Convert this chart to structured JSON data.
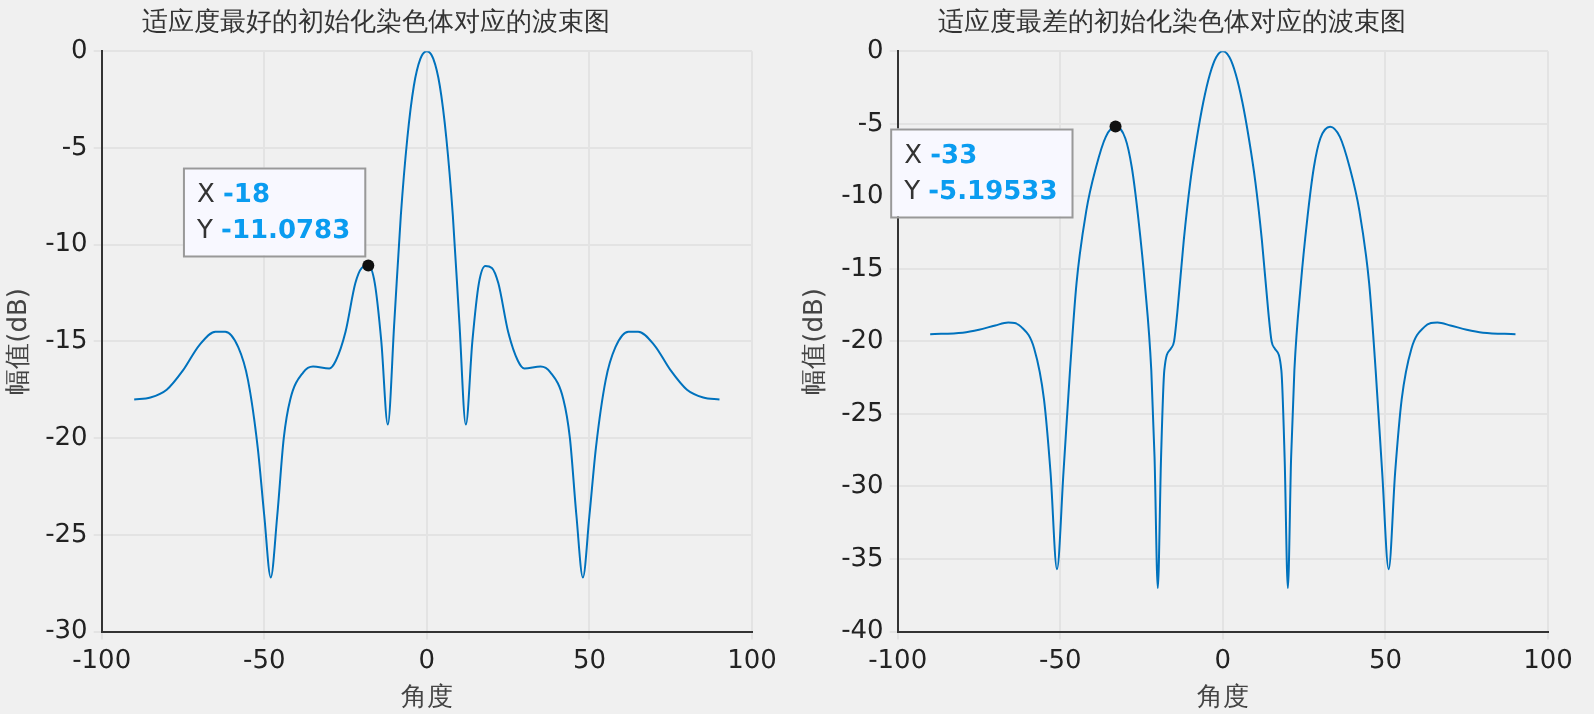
{
  "chart_data": [
    {
      "type": "line",
      "title": "适应度最好的初始化染色体对应的波束图",
      "xlabel": "角度",
      "ylabel": "幅值(dB)",
      "xlim": [
        -100,
        100
      ],
      "xticks": [
        -100,
        -50,
        0,
        50,
        100
      ],
      "ylim": [
        -30,
        0
      ],
      "yticks": [
        -30,
        -25,
        -20,
        -15,
        -10,
        -5,
        0
      ],
      "grid": true,
      "legend": false,
      "annotations": [
        {
          "text": "X -18\nY -11.0783",
          "x": -18,
          "y": -11.0783
        }
      ],
      "series": [
        {
          "color": "#0072bd",
          "x": [
            -90,
            -85,
            -80,
            -75,
            -70,
            -65,
            -62,
            -58,
            -55,
            -52,
            -50,
            -48,
            -46,
            -44,
            -42,
            -38,
            -35,
            -30,
            -28,
            -25,
            -22,
            -20,
            -18,
            -16,
            -14,
            -12,
            -10,
            -8,
            -6,
            -4,
            -2,
            0,
            2,
            4,
            6,
            8,
            10,
            12,
            14,
            16,
            18,
            20,
            22,
            25,
            28,
            30,
            35,
            38,
            42,
            44,
            46,
            48,
            50,
            52,
            55,
            58,
            62,
            65,
            70,
            75,
            80,
            85,
            90
          ],
          "values": [
            -18,
            -17.9,
            -17.5,
            -16.5,
            -15.2,
            -14.5,
            -14.5,
            -15.3,
            -17,
            -20.5,
            -24,
            -27.2,
            -24,
            -20,
            -18,
            -16.6,
            -16.3,
            -16.4,
            -16,
            -14.5,
            -12,
            -11.2,
            -11.0783,
            -12,
            -15,
            -19.3,
            -14,
            -8.5,
            -4.5,
            -1.8,
            -0.4,
            0,
            -0.4,
            -1.8,
            -4.5,
            -8.5,
            -14,
            -19.3,
            -15,
            -12,
            -11.1,
            -11.2,
            -12,
            -14.5,
            -16,
            -16.4,
            -16.3,
            -16.6,
            -18,
            -20,
            -24,
            -27.2,
            -24,
            -20.5,
            -17,
            -15.3,
            -14.5,
            -14.5,
            -15.2,
            -16.5,
            -17.5,
            -17.9,
            -18
          ]
        }
      ]
    },
    {
      "type": "line",
      "title": "适应度最差的初始化染色体对应的波束图",
      "xlabel": "角度",
      "ylabel": "幅值(dB)",
      "xlim": [
        -100,
        100
      ],
      "xticks": [
        -100,
        -50,
        0,
        50,
        100
      ],
      "ylim": [
        -40,
        0
      ],
      "yticks": [
        -40,
        -35,
        -30,
        -25,
        -20,
        -15,
        -10,
        -5,
        0
      ],
      "grid": true,
      "legend": false,
      "annotations": [
        {
          "text": "X -33\nY -5.19533",
          "x": -33,
          "y": -5.19533
        }
      ],
      "series": [
        {
          "color": "#0072bd",
          "x": [
            -90,
            -80,
            -75,
            -70,
            -66,
            -62,
            -58,
            -55,
            -53,
            -51,
            -49,
            -47,
            -45,
            -42,
            -39,
            -36,
            -33,
            -30,
            -28,
            -26,
            -24,
            -22,
            -21,
            -20,
            -19,
            -18,
            -16,
            -15,
            -14,
            -12,
            -10,
            -8,
            -6,
            -4,
            -2,
            0,
            2,
            4,
            6,
            8,
            10,
            12,
            14,
            15,
            16,
            18,
            19,
            20,
            21,
            22,
            24,
            26,
            28,
            30,
            33,
            36,
            39,
            42,
            45,
            47,
            49,
            51,
            53,
            55,
            58,
            62,
            66,
            70,
            75,
            80,
            90
          ],
          "values": [
            -19.5,
            -19.4,
            -19.2,
            -18.9,
            -18.7,
            -19,
            -20.5,
            -24,
            -29,
            -35.7,
            -29,
            -22,
            -16,
            -11,
            -8,
            -5.9,
            -5.19533,
            -6,
            -8,
            -11.5,
            -16,
            -22,
            -28,
            -37,
            -28,
            -22,
            -20.5,
            -20,
            -18,
            -13,
            -9,
            -6,
            -3.5,
            -1.6,
            -0.4,
            0,
            -0.4,
            -1.6,
            -3.5,
            -6,
            -9,
            -13,
            -18,
            -20,
            -20.5,
            -22,
            -28,
            -37,
            -28,
            -22,
            -16,
            -11.5,
            -8,
            -6,
            -5.2,
            -5.9,
            -8,
            -11,
            -16,
            -22,
            -29,
            -35.7,
            -29,
            -24,
            -20.5,
            -19,
            -18.7,
            -18.9,
            -19.2,
            -19.4,
            -19.5
          ]
        }
      ]
    }
  ]
}
